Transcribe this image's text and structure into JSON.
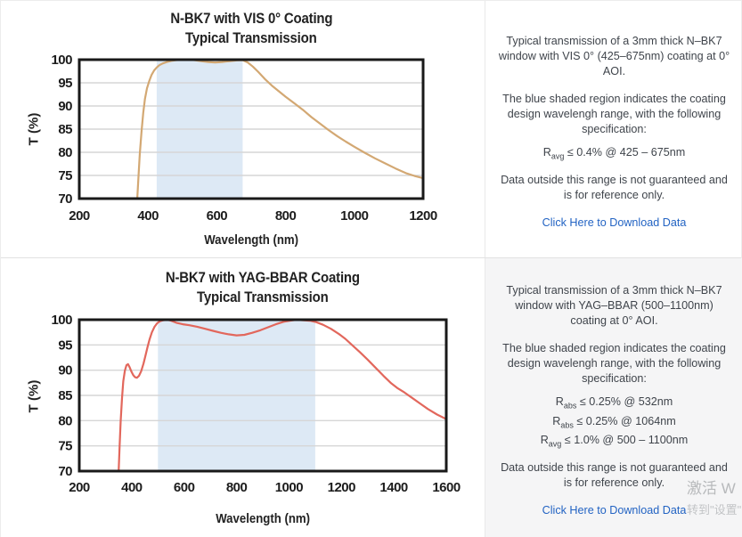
{
  "chart_data": [
    {
      "type": "line",
      "title": "N-BK7 with VIS 0° Coating",
      "subtitle": "Typical Transmission",
      "xlabel": "Wavelength (nm)",
      "ylabel": "T (%)",
      "xlim": [
        200,
        1200
      ],
      "ylim": [
        70,
        100
      ],
      "xticks": [
        200,
        400,
        600,
        800,
        1000,
        1200
      ],
      "yticks": [
        70,
        75,
        80,
        85,
        90,
        95,
        100
      ],
      "grid": "horizontal",
      "legend": "none",
      "shaded_region": {
        "x_start": 425,
        "x_end": 675,
        "color": "#dde9f5",
        "meaning": "coating design wavelength range 425-675nm"
      },
      "line_color": "#d3a873",
      "series": [
        {
          "name": "Typical Transmission",
          "x": [
            368,
            372,
            376,
            381,
            386,
            391,
            397,
            403,
            410,
            418,
            425,
            433,
            443,
            455,
            468,
            482,
            498,
            515,
            535,
            555,
            575,
            595,
            615,
            638,
            658,
            675,
            690,
            705,
            720,
            740,
            760,
            780,
            800,
            825,
            850,
            875,
            900,
            925,
            950,
            975,
            1000,
            1030,
            1060,
            1090,
            1120,
            1150,
            1175,
            1200
          ],
          "y": [
            69,
            74.5,
            79.5,
            84.5,
            88.5,
            91.5,
            93.8,
            95.3,
            96.7,
            97.7,
            98.3,
            98.8,
            99.2,
            99.5,
            99.75,
            99.9,
            100,
            100,
            99.9,
            99.7,
            99.5,
            99.4,
            99.5,
            99.7,
            99.85,
            99.9,
            99.4,
            98.5,
            97.4,
            95.8,
            94.4,
            93.2,
            92,
            90.6,
            89.2,
            87.6,
            86.2,
            84.8,
            83.5,
            82.3,
            81.2,
            79.9,
            78.7,
            77.6,
            76.5,
            75.5,
            74.9,
            74.4
          ]
        }
      ]
    },
    {
      "type": "line",
      "title": "N-BK7 with YAG-BBAR Coating",
      "subtitle": "Typical Transmission",
      "xlabel": "Wavelength (nm)",
      "ylabel": "T (%)",
      "xlim": [
        200,
        1600
      ],
      "ylim": [
        70,
        100
      ],
      "xticks": [
        200,
        400,
        600,
        800,
        1000,
        1200,
        1400,
        1600
      ],
      "yticks": [
        70,
        75,
        80,
        85,
        90,
        95,
        100
      ],
      "grid": "horizontal",
      "legend": "none",
      "shaded_region": {
        "x_start": 500,
        "x_end": 1100,
        "color": "#dde9f5",
        "meaning": "coating design wavelength range 500-1100nm"
      },
      "line_color": "#e2675c",
      "series": [
        {
          "name": "Typical Transmission",
          "x": [
            350,
            354,
            358,
            363,
            368,
            374,
            380,
            386,
            392,
            399,
            406,
            413,
            420,
            428,
            436,
            445,
            452,
            460,
            468,
            477,
            487,
            497,
            508,
            520,
            535,
            550,
            570,
            595,
            620,
            650,
            680,
            710,
            740,
            770,
            800,
            830,
            860,
            890,
            920,
            950,
            980,
            1005,
            1030,
            1055,
            1080,
            1105,
            1130,
            1160,
            1190,
            1215,
            1240,
            1270,
            1300,
            1330,
            1360,
            1390,
            1415,
            1440,
            1470,
            1500,
            1530,
            1565,
            1600
          ],
          "y": [
            69.5,
            75,
            80,
            84.5,
            87.8,
            89.9,
            91,
            91.2,
            90.6,
            89.7,
            89,
            88.6,
            88.5,
            88.9,
            89.8,
            91.3,
            92.8,
            94.5,
            96.1,
            97.5,
            98.6,
            99.3,
            99.7,
            99.9,
            100,
            99.8,
            99.4,
            99.1,
            98.9,
            98.6,
            98.2,
            97.8,
            97.4,
            97.1,
            96.9,
            97,
            97.4,
            97.9,
            98.5,
            99.1,
            99.6,
            99.8,
            100,
            99.9,
            99.8,
            99.5,
            99,
            98.2,
            97.2,
            96.2,
            95,
            93.6,
            92.1,
            90.5,
            88.9,
            87.4,
            86.4,
            85.6,
            84.5,
            83.4,
            82.3,
            81.2,
            80.3
          ]
        }
      ]
    }
  ],
  "panels": [
    {
      "p1": "Typical transmission of a 3mm thick N–BK7 window with VIS 0° (425–675nm) coating at 0° AOI.",
      "p2": "The blue shaded region indicates the coating design wavelengh range, with the following specification:",
      "specs": [
        {
          "base": "R",
          "sub": "avg",
          "text": " ≤ 0.4% @ 425 – 675nm"
        }
      ],
      "p3": "Data outside this range is not guaranteed and is for reference only.",
      "link_label": "Click Here to Download Data"
    },
    {
      "p1": "Typical transmission of a 3mm thick N–BK7 window with YAG–BBAR (500–1100nm) coating at 0° AOI.",
      "p2": "The blue shaded region indicates the coating design wavelengh range, with the following specification:",
      "specs": [
        {
          "base": "R",
          "sub": "abs",
          "text": " ≤ 0.25% @ 532nm"
        },
        {
          "base": "R",
          "sub": "abs",
          "text": " ≤ 0.25% @ 1064nm"
        },
        {
          "base": "R",
          "sub": "avg",
          "text": " ≤ 1.0% @ 500 – 1100nm"
        }
      ],
      "p3": "Data outside this range is not guaranteed and is for reference only.",
      "link_label": "Click Here to Download Data"
    }
  ],
  "watermark": {
    "line1": "激活 W",
    "line2": "转到\"设置\""
  },
  "colors": {
    "shade": "#dde9f5",
    "curve_vis": "#d3a873",
    "curve_yag": "#e2675c",
    "link": "#2263c3",
    "frame": "#191919",
    "grid": "#d6d6d6",
    "panel_gray_bg": "#f5f5f6"
  }
}
